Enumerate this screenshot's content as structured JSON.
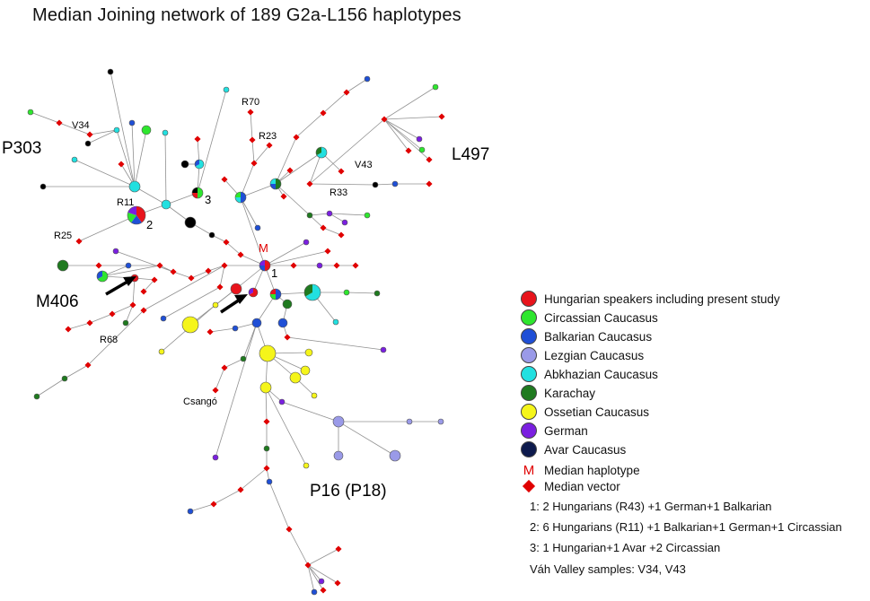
{
  "title": "Median Joining network of 189 G2a-L156 haplotypes",
  "colors": {
    "hungarian": "#e8141c",
    "circassian": "#2ee62e",
    "balkarian": "#1f4fd6",
    "lezgian": "#9a9ae8",
    "abkhazian": "#22e0e0",
    "karachay": "#1f7a1f",
    "ossetian": "#f5f51a",
    "german": "#7a1fe0",
    "avar": "#0d1a4d",
    "black": "#000000",
    "median": "#e00000",
    "edge": "#909090"
  },
  "network_labels": {
    "p303": "P303",
    "l497": "L497",
    "m406": "M406",
    "p16": "P16 (P18)",
    "v34": "V34",
    "v43": "V43",
    "r70": "R70",
    "r23": "R23",
    "r33": "R33",
    "r11": "R11",
    "r25": "R25",
    "r68": "R68",
    "csango": "Csangó",
    "n1": "1",
    "n2": "2",
    "n3": "3",
    "median_m": "M"
  },
  "legend": {
    "hungarian": "Hungarian speakers including present study",
    "circassian": "Circassian Caucasus",
    "balkarian": "Balkarian Caucasus",
    "lezgian": "Lezgian Caucasus",
    "abkhazian": "Abkhazian Caucasus",
    "karachay": "Karachay",
    "ossetian": "Ossetian Caucasus",
    "german": "German",
    "avar": "Avar Caucasus",
    "median_symbol": "M",
    "median_haplotype": "Median haplotype",
    "median_vector": "Median vector"
  },
  "notes": {
    "n1": "1: 2 Hungarians (R43)  +1 German+1 Balkarian",
    "n2": "2: 6 Hungarians (R11)  +1 Balkarian+1 German+1 Circassian",
    "n3": "3: 1 Hungarian+1 Avar +2 Circassian",
    "vah": "Váh Valley samples: V34, V43"
  }
}
